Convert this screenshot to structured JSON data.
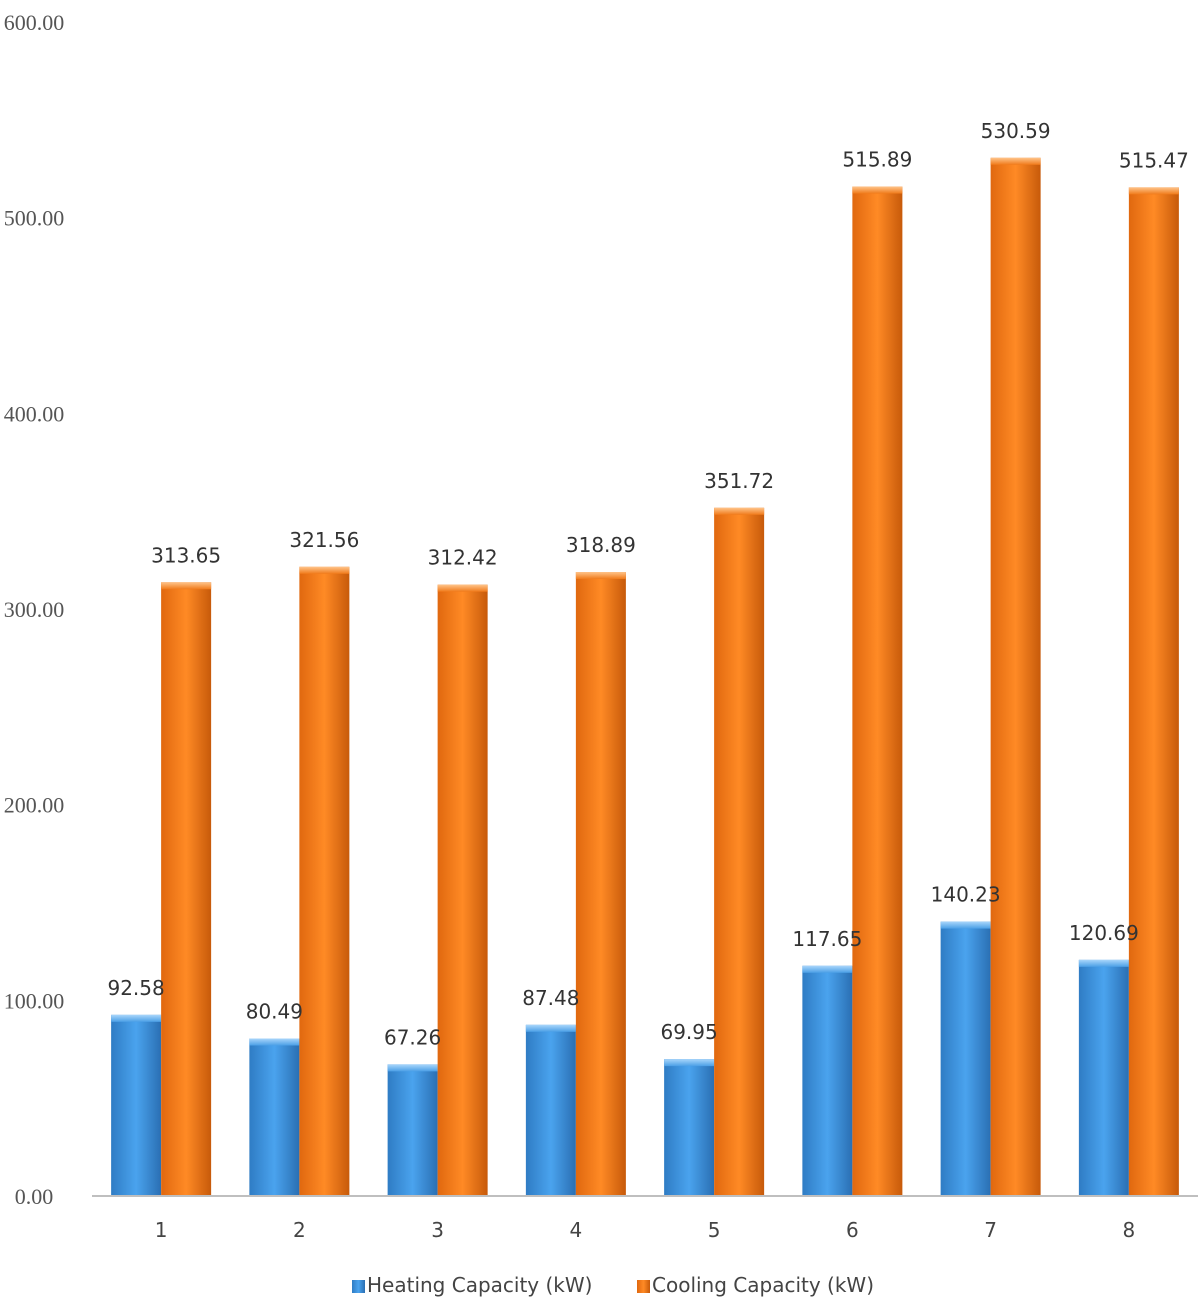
{
  "chart_data": {
    "type": "bar",
    "title": "",
    "xlabel": "",
    "ylabel": "",
    "categories": [
      "1",
      "2",
      "3",
      "4",
      "5",
      "6",
      "7",
      "8"
    ],
    "ylim": [
      0,
      600
    ],
    "yticks": [
      "0.00",
      "100.00",
      "200.00",
      "300.00",
      "400.00",
      "500.00",
      "600.00"
    ],
    "legend_position": "bottom",
    "grid": false,
    "series": [
      {
        "name": "Heating Capacity (kW)",
        "color": "#3d8fd6",
        "values": [
          92.58,
          80.49,
          67.26,
          87.48,
          69.95,
          117.65,
          140.23,
          120.69
        ],
        "labels": [
          "92.58",
          "80.49",
          "67.26",
          "87.48",
          "69.95",
          "117.65",
          "140.23",
          "120.69"
        ]
      },
      {
        "name": "Cooling Capacity (kW)",
        "color": "#f07a1a",
        "values": [
          313.65,
          321.56,
          312.42,
          318.89,
          351.72,
          515.89,
          530.59,
          515.47
        ],
        "labels": [
          "313.65",
          "321.56",
          "312.42",
          "318.89",
          "351.72",
          "515.89",
          "530.59",
          "515.47"
        ]
      }
    ]
  }
}
